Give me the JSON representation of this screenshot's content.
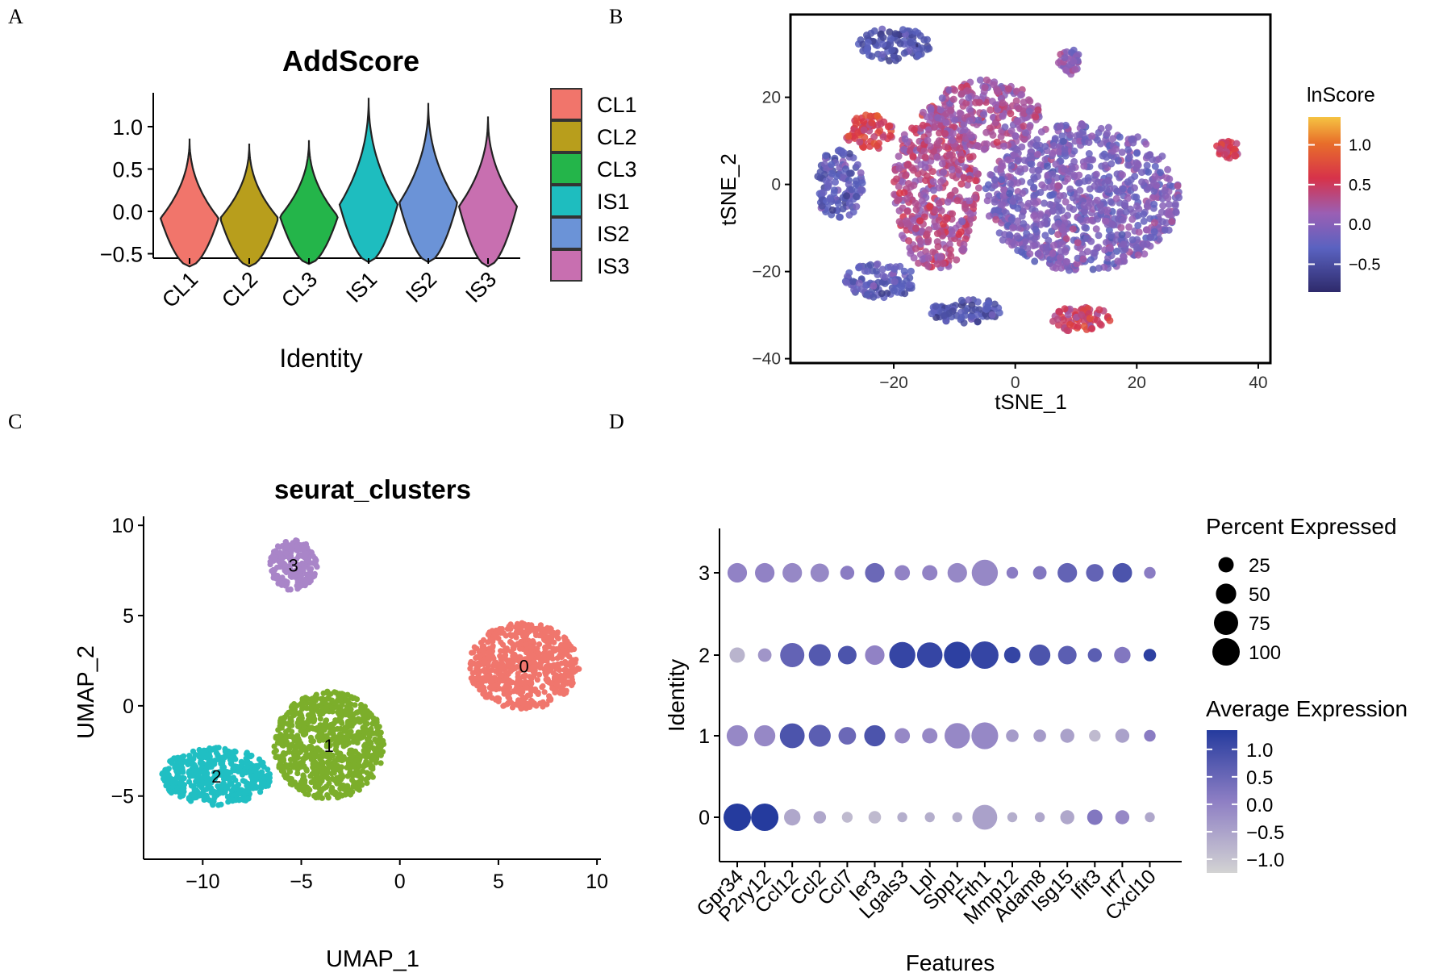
{
  "panels": {
    "a": "A",
    "b": "B",
    "c": "C",
    "d": "D"
  },
  "chart_data": [
    {
      "type": "violin",
      "panel": "A",
      "title": "AddScore",
      "xlabel": "Identity",
      "ylabel": "",
      "ylim": [
        -0.6,
        1.4
      ],
      "yticks": [
        "1.0",
        "0.5",
        "0.0",
        "−0.5"
      ],
      "categories": [
        "CL1",
        "CL2",
        "CL3",
        "IS1",
        "IS2",
        "IS3"
      ],
      "series": [
        {
          "name": "CL1",
          "min": -0.65,
          "max": 0.86,
          "peak": -0.08,
          "color": "#F1756B"
        },
        {
          "name": "CL2",
          "min": -0.65,
          "max": 0.8,
          "peak": -0.08,
          "color": "#B89E1C"
        },
        {
          "name": "CL3",
          "min": -0.62,
          "max": 0.84,
          "peak": -0.06,
          "color": "#24B54A"
        },
        {
          "name": "IS1",
          "min": -0.6,
          "max": 1.34,
          "peak": 0.08,
          "color": "#1EBDBF"
        },
        {
          "name": "IS2",
          "min": -0.6,
          "max": 1.28,
          "peak": 0.1,
          "color": "#6B93D7"
        },
        {
          "name": "IS3",
          "min": -0.65,
          "max": 1.12,
          "peak": 0.06,
          "color": "#C86FB0"
        }
      ],
      "legend": [
        "CL1",
        "CL2",
        "CL3",
        "IS1",
        "IS2",
        "IS3"
      ]
    },
    {
      "type": "scatter",
      "panel": "B",
      "xlabel": "tSNE_1",
      "ylabel": "tSNE_2",
      "xlim": [
        -37,
        42
      ],
      "ylim": [
        -41,
        39
      ],
      "xticks": [
        "−20",
        "0",
        "20",
        "40"
      ],
      "yticks": [
        "20",
        "0",
        "−20",
        "−40"
      ],
      "colorbar_title": "lnScore",
      "colorbar_ticks": [
        "1.0",
        "0.5",
        "0.0",
        "−0.5"
      ],
      "colorbar_range": [
        -0.85,
        1.35
      ],
      "clusters": [
        {
          "cx": 11,
          "cy": -3,
          "rx": 16,
          "ry": 17,
          "score": -0.05
        },
        {
          "cx": -13,
          "cy": -1,
          "rx": 7,
          "ry": 19,
          "score": 0.3
        },
        {
          "cx": -5,
          "cy": 16,
          "rx": 9,
          "ry": 8,
          "score": 0.2
        },
        {
          "cx": -20,
          "cy": 32,
          "rx": 6,
          "ry": 4,
          "score": -0.4
        },
        {
          "cx": -29,
          "cy": 0,
          "rx": 4,
          "ry": 8,
          "score": -0.3
        },
        {
          "cx": -24,
          "cy": 12,
          "rx": 4,
          "ry": 4,
          "score": 0.6
        },
        {
          "cx": -22,
          "cy": -22,
          "rx": 6,
          "ry": 4,
          "score": -0.3
        },
        {
          "cx": -8,
          "cy": -29,
          "rx": 6,
          "ry": 3,
          "score": -0.4
        },
        {
          "cx": 11,
          "cy": -31,
          "rx": 5,
          "ry": 3,
          "score": 0.5
        },
        {
          "cx": 35,
          "cy": 8,
          "rx": 2,
          "ry": 2,
          "score": 0.5
        },
        {
          "cx": 9,
          "cy": 28,
          "rx": 2,
          "ry": 3,
          "score": 0.1
        }
      ]
    },
    {
      "type": "scatter",
      "panel": "C",
      "title": "seurat_clusters",
      "xlabel": "UMAP_1",
      "ylabel": "UMAP_2",
      "xlim": [
        -13,
        10.2
      ],
      "ylim": [
        -8.5,
        10.5
      ],
      "xticks": [
        "−10",
        "−5",
        "0",
        "5",
        "10"
      ],
      "yticks": [
        "10",
        "5",
        "0",
        "−5"
      ],
      "clusters": [
        {
          "label": "0",
          "cx": 6.3,
          "cy": 2.2,
          "rx": 2.8,
          "ry": 2.4,
          "color": "#F0766D"
        },
        {
          "label": "1",
          "cx": -3.6,
          "cy": -2.2,
          "rx": 2.8,
          "ry": 3.0,
          "color": "#7CAE2B"
        },
        {
          "label": "2",
          "cx": -9.3,
          "cy": -3.9,
          "rx": 2.8,
          "ry": 1.6,
          "color": "#20BFC3"
        },
        {
          "label": "3",
          "cx": -5.4,
          "cy": 7.8,
          "rx": 1.2,
          "ry": 1.4,
          "color": "#A985C8"
        }
      ]
    },
    {
      "type": "dot",
      "panel": "D",
      "xlabel": "Features",
      "ylabel": "Identity",
      "features": [
        "Gpr34",
        "P2ry12",
        "Ccl12",
        "Ccl2",
        "Ccl7",
        "Ier3",
        "Lgals3",
        "Lpl",
        "Spp1",
        "Fth1",
        "Mmp12",
        "Adam8",
        "Isg15",
        "Ifit3",
        "Irf7",
        "Cxcl10"
      ],
      "identities": [
        "3",
        "2",
        "1",
        "0"
      ],
      "pct": [
        [
          45,
          45,
          45,
          40,
          20,
          45,
          25,
          25,
          45,
          90,
          12,
          18,
          45,
          35,
          45,
          12
        ],
        [
          25,
          18,
          75,
          60,
          40,
          45,
          90,
          85,
          95,
          100,
          30,
          55,
          40,
          20,
          30,
          15
        ],
        [
          55,
          55,
          80,
          60,
          35,
          55,
          25,
          25,
          85,
          95,
          15,
          15,
          20,
          12,
          20,
          12
        ],
        [
          100,
          100,
          30,
          15,
          10,
          15,
          8,
          8,
          8,
          80,
          8,
          8,
          20,
          25,
          20,
          8
        ]
      ],
      "avg": [
        [
          0.1,
          0.1,
          0.0,
          0.0,
          0.2,
          0.6,
          0.1,
          0.1,
          0.0,
          0.0,
          0.2,
          0.3,
          0.7,
          0.7,
          1.0,
          0.2
        ],
        [
          -0.7,
          -0.2,
          0.7,
          0.9,
          1.0,
          0.1,
          1.3,
          1.3,
          1.4,
          1.3,
          1.3,
          1.0,
          0.8,
          0.8,
          0.3,
          1.4
        ],
        [
          0.0,
          0.0,
          1.0,
          0.8,
          0.6,
          1.0,
          0.0,
          0.0,
          0.0,
          0.0,
          -0.3,
          -0.3,
          -0.4,
          -0.8,
          -0.4,
          0.2
        ],
        [
          1.5,
          1.5,
          -0.5,
          -0.5,
          -0.8,
          -0.8,
          -0.6,
          -0.6,
          -0.6,
          -0.4,
          -0.6,
          -0.5,
          -0.5,
          0.3,
          0.0,
          -0.5
        ]
      ],
      "size_legend_title": "Percent Expressed",
      "size_legend": [
        "25",
        "50",
        "75",
        "100"
      ],
      "color_legend_title": "Average Expression",
      "color_legend_ticks": [
        "1.0",
        "0.5",
        "0.0",
        "−0.5",
        "−1.0"
      ]
    }
  ]
}
